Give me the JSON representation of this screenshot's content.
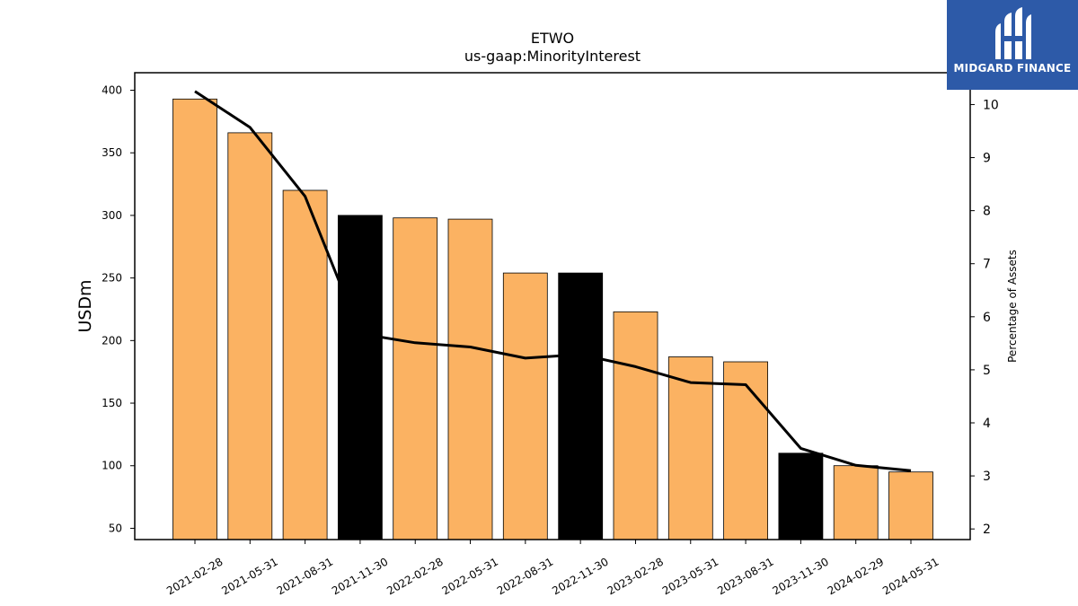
{
  "chart_data": {
    "type": "bar",
    "title": "ETWO",
    "subtitle": "us-gaap:MinorityInterest",
    "ylabel": "USDm",
    "y2label": "Percentage of Assets",
    "categories": [
      "2021-02-28",
      "2021-05-31",
      "2021-08-31",
      "2021-11-30",
      "2022-02-28",
      "2022-05-31",
      "2022-08-31",
      "2022-11-30",
      "2023-02-28",
      "2023-05-31",
      "2023-08-31",
      "2023-11-30",
      "2024-02-29",
      "2024-05-31"
    ],
    "series": [
      {
        "type": "bar",
        "axis": "left",
        "values": [
          393,
          366,
          320,
          300,
          298,
          297,
          254,
          254,
          223,
          187,
          183,
          110,
          100,
          95
        ],
        "highlight": [
          false,
          false,
          false,
          true,
          false,
          false,
          false,
          true,
          false,
          false,
          false,
          true,
          false,
          false
        ]
      },
      {
        "type": "line",
        "axis": "right",
        "values": [
          10.25,
          9.57,
          8.27,
          5.68,
          5.51,
          5.43,
          5.22,
          5.29,
          5.06,
          4.76,
          4.72,
          3.52,
          3.2,
          3.1
        ]
      }
    ],
    "ylim": [
      41,
      414
    ],
    "yticks": [
      50,
      100,
      150,
      200,
      250,
      300,
      350,
      400
    ],
    "y2lim": [
      1.8,
      10.6
    ],
    "y2ticks": [
      2,
      3,
      4,
      5,
      6,
      7,
      8,
      9,
      10
    ],
    "colors": {
      "bar": "#fbb262",
      "bar_highlight": "#000000",
      "line": "#000000",
      "edge": "#000000"
    },
    "grid": false,
    "legend": "none"
  },
  "logo": {
    "text": "MIDGARD FINANCE"
  }
}
